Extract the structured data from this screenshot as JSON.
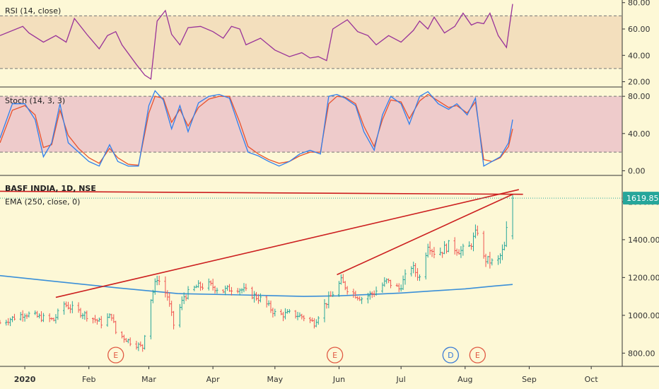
{
  "panels": {
    "rsi": {
      "label": "RSI (14, close)"
    },
    "stoch": {
      "label": "Stoch (14, 3, 3)"
    },
    "price": {
      "label_symbol": "BASF INDIA, 1D, NSE",
      "label_ema": "EMA (250, close, 0)"
    }
  },
  "last_price": "1619.85",
  "colors": {
    "background": "#fdf8d6",
    "rsi_band": "#f3dfbd",
    "rsi_line": "#993399",
    "stoch_band": "#eecbcb",
    "stoch_k": "#2f80ed",
    "stoch_d": "#e8522e",
    "ema_line": "#3a8fd8",
    "trendline": "#cc1f1f",
    "candle_up": "#26a69a",
    "candle_down": "#ef5350",
    "price_tag": "#26a69a"
  },
  "events": [
    {
      "letter": "E",
      "date": "2020-02-14",
      "color": "#e05a44"
    },
    {
      "letter": "E",
      "date": "2020-05-30",
      "color": "#e05a44"
    },
    {
      "letter": "D",
      "date": "2020-07-25",
      "color": "#3a7bd5"
    },
    {
      "letter": "E",
      "date": "2020-08-07",
      "color": "#e05a44"
    }
  ],
  "chart_data": [
    {
      "type": "line",
      "panel": "rsi",
      "title": "RSI (14, close)",
      "ylim": [
        16,
        82
      ],
      "y_ticks": [
        "20.00",
        "40.00",
        "60.00",
        "80.00"
      ],
      "band": [
        30,
        70
      ],
      "x": [
        "2019-12-20",
        "2019-12-31",
        "2020-01-03",
        "2020-01-10",
        "2020-01-16",
        "2020-01-21",
        "2020-01-25",
        "2020-01-31",
        "2020-02-06",
        "2020-02-10",
        "2020-02-14",
        "2020-02-17",
        "2020-02-24",
        "2020-02-28",
        "2020-03-02",
        "2020-03-05",
        "2020-03-09",
        "2020-03-12",
        "2020-03-16",
        "2020-03-20",
        "2020-03-26",
        "2020-04-01",
        "2020-04-06",
        "2020-04-10",
        "2020-04-14",
        "2020-04-17",
        "2020-04-24",
        "2020-05-01",
        "2020-05-08",
        "2020-05-14",
        "2020-05-18",
        "2020-05-22",
        "2020-05-26",
        "2020-05-29",
        "2020-06-02",
        "2020-06-05",
        "2020-06-10",
        "2020-06-15",
        "2020-06-19",
        "2020-06-25",
        "2020-07-01",
        "2020-07-07",
        "2020-07-10",
        "2020-07-14",
        "2020-07-17",
        "2020-07-22",
        "2020-07-27",
        "2020-07-31",
        "2020-08-04",
        "2020-08-07",
        "2020-08-10",
        "2020-08-13",
        "2020-08-17",
        "2020-08-21",
        "2020-08-24"
      ],
      "series": [
        {
          "values": [
            55,
            62,
            57,
            50,
            55,
            50,
            68,
            56,
            45,
            55,
            58,
            48,
            33,
            25,
            22,
            66,
            74,
            56,
            48,
            61,
            62,
            58,
            53,
            62,
            60,
            48,
            53,
            44,
            39,
            42,
            38,
            39,
            36,
            60,
            64,
            67,
            58,
            55,
            48,
            55,
            50,
            59,
            66,
            60,
            69,
            57,
            62,
            72,
            63,
            65,
            64,
            72,
            55,
            46,
            79
          ]
        }
      ]
    },
    {
      "type": "line",
      "panel": "stoch",
      "title": "Stoch (14, 3, 3)",
      "ylim": [
        -5,
        90
      ],
      "y_ticks": [
        "0.00",
        "40.00",
        "80.00"
      ],
      "band": [
        20,
        80
      ],
      "x": [
        "2019-12-20",
        "2019-12-26",
        "2020-01-01",
        "2020-01-06",
        "2020-01-10",
        "2020-01-14",
        "2020-01-18",
        "2020-01-22",
        "2020-01-27",
        "2020-02-01",
        "2020-02-06",
        "2020-02-11",
        "2020-02-15",
        "2020-02-20",
        "2020-02-25",
        "2020-03-01",
        "2020-03-04",
        "2020-03-08",
        "2020-03-12",
        "2020-03-16",
        "2020-03-20",
        "2020-03-25",
        "2020-03-30",
        "2020-04-04",
        "2020-04-09",
        "2020-04-14",
        "2020-04-18",
        "2020-04-23",
        "2020-04-28",
        "2020-05-03",
        "2020-05-08",
        "2020-05-13",
        "2020-05-18",
        "2020-05-23",
        "2020-05-27",
        "2020-05-31",
        "2020-06-04",
        "2020-06-09",
        "2020-06-13",
        "2020-06-18",
        "2020-06-22",
        "2020-06-26",
        "2020-07-01",
        "2020-07-05",
        "2020-07-10",
        "2020-07-14",
        "2020-07-19",
        "2020-07-24",
        "2020-07-28",
        "2020-08-02",
        "2020-08-06",
        "2020-08-10",
        "2020-08-14",
        "2020-08-18",
        "2020-08-22",
        "2020-08-24"
      ],
      "series": [
        {
          "values": [
            35,
            72,
            72,
            55,
            15,
            30,
            72,
            30,
            20,
            10,
            5,
            28,
            10,
            5,
            5,
            70,
            86,
            76,
            45,
            70,
            42,
            73,
            80,
            82,
            78,
            45,
            20,
            16,
            10,
            5,
            10,
            18,
            22,
            18,
            80,
            82,
            78,
            70,
            42,
            22,
            60,
            80,
            72,
            50,
            80,
            85,
            72,
            66,
            72,
            60,
            78,
            5,
            10,
            15,
            30,
            55
          ]
        },
        {
          "values": [
            30,
            65,
            70,
            60,
            25,
            28,
            65,
            38,
            24,
            14,
            8,
            24,
            14,
            7,
            6,
            62,
            80,
            78,
            52,
            66,
            48,
            68,
            77,
            80,
            80,
            52,
            26,
            18,
            12,
            8,
            10,
            16,
            20,
            20,
            72,
            80,
            79,
            72,
            48,
            26,
            55,
            76,
            74,
            56,
            75,
            82,
            75,
            68,
            70,
            62,
            74,
            12,
            10,
            14,
            26,
            45
          ]
        }
      ]
    },
    {
      "type": "candlestick",
      "panel": "price",
      "title": "BASF INDIA, 1D, NSE",
      "ylim": [
        730,
        1740
      ],
      "y_ticks": [
        "800.00",
        "1000.00",
        "1200.00",
        "1400.00",
        "1600.00"
      ],
      "x_ticks": [
        "2020",
        "Feb",
        "Mar",
        "Apr",
        "May",
        "Jun",
        "Jul",
        "Aug",
        "Sep",
        "Oct"
      ],
      "x_tick_dates": [
        "2020-01-01",
        "2020-02-01",
        "2020-03-01",
        "2020-04-01",
        "2020-05-01",
        "2020-06-01",
        "2020-07-01",
        "2020-08-01",
        "2020-09-01",
        "2020-10-01"
      ],
      "x_range": [
        "2019-12-20",
        "2020-10-16"
      ],
      "last_price": 1619.85,
      "close_anchors": {
        "dates": [
          "2019-12-20",
          "2020-01-01",
          "2020-01-08",
          "2020-01-15",
          "2020-01-20",
          "2020-01-24",
          "2020-01-31",
          "2020-02-07",
          "2020-02-12",
          "2020-02-14",
          "2020-02-21",
          "2020-02-27",
          "2020-03-01",
          "2020-03-05",
          "2020-03-10",
          "2020-03-13",
          "2020-03-18",
          "2020-03-24",
          "2020-03-30",
          "2020-04-06",
          "2020-04-12",
          "2020-04-18",
          "2020-04-25",
          "2020-05-02",
          "2020-05-09",
          "2020-05-15",
          "2020-05-20",
          "2020-05-24",
          "2020-05-28",
          "2020-06-02",
          "2020-06-06",
          "2020-06-12",
          "2020-06-18",
          "2020-06-24",
          "2020-06-30",
          "2020-07-06",
          "2020-07-10",
          "2020-07-14",
          "2020-07-18",
          "2020-07-24",
          "2020-07-30",
          "2020-08-03",
          "2020-08-07",
          "2020-08-10",
          "2020-08-14",
          "2020-08-17",
          "2020-08-20",
          "2020-08-21",
          "2020-08-24"
        ],
        "values": [
          960,
          1010,
          990,
          975,
          1060,
          1035,
          1000,
          960,
          1000,
          910,
          860,
          830,
          1050,
          1200,
          1100,
          950,
          1100,
          1150,
          1160,
          1130,
          1150,
          1120,
          1080,
          1000,
          1010,
          990,
          960,
          1040,
          1100,
          1180,
          1130,
          1090,
          1120,
          1180,
          1140,
          1260,
          1200,
          1380,
          1320,
          1370,
          1340,
          1360,
          1450,
          1300,
          1280,
          1290,
          1360,
          1450,
          1619.85
        ]
      },
      "series": [
        {
          "name": "EMA (250, close, 0)",
          "type": "line",
          "dates": [
            "2019-12-20",
            "2020-01-15",
            "2020-02-15",
            "2020-03-15",
            "2020-04-15",
            "2020-05-15",
            "2020-06-01",
            "2020-06-15",
            "2020-07-01",
            "2020-07-15",
            "2020-08-01",
            "2020-08-15",
            "2020-08-24"
          ],
          "values": [
            1210,
            1180,
            1145,
            1115,
            1108,
            1100,
            1103,
            1110,
            1118,
            1128,
            1140,
            1155,
            1163
          ]
        }
      ],
      "trendlines": [
        {
          "from": [
            "2020-01-16",
            1095
          ],
          "to": [
            "2020-08-27",
            1665
          ]
        },
        {
          "from": [
            "2020-05-31",
            1215
          ],
          "to": [
            "2020-08-24",
            1640
          ]
        },
        {
          "from": [
            "2019-12-20",
            1656
          ],
          "to": [
            "2020-08-29",
            1640
          ]
        }
      ]
    }
  ]
}
